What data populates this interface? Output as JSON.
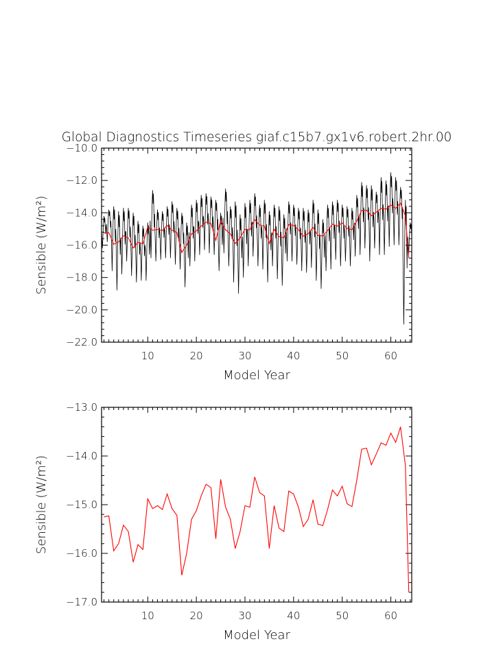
{
  "colors": {
    "background": "#ffffff",
    "axes": "#000000",
    "monthly_series": "#000000",
    "annual_series": "#ff0000"
  },
  "chart_data": [
    {
      "type": "line",
      "title": "Global Diagnostics Timeseries giaf.c15b7.gx1v6.robert.2hr.00",
      "xlabel": "Model Year",
      "ylabel": "Sensible (W/m²)",
      "xlim": [
        0.5,
        64.3
      ],
      "ylim": [
        -22.0,
        -10.0
      ],
      "xticks": [
        10,
        20,
        30,
        40,
        50,
        60
      ],
      "yticks": [
        -22.0,
        -20.0,
        -18.0,
        -16.0,
        -14.0,
        -12.0,
        -10.0
      ],
      "yticklabels": [
        "−22.0",
        "−20.0",
        "−18.0",
        "−16.0",
        "−14.0",
        "−12.0",
        "−10.0"
      ],
      "grid": false,
      "legend": "none",
      "series": [
        {
          "kind": "monthly",
          "monthly_min": [
            -16.2,
            -15.8,
            -17.6,
            -18.8,
            -17.8,
            -17.0,
            -17.9,
            -18.3,
            -18.2,
            -18.2,
            -16.8,
            -17.0,
            -16.9,
            -16.8,
            -16.8,
            -17.2,
            -17.5,
            -18.6,
            -17.3,
            -17.0,
            -16.6,
            -16.3,
            -16.5,
            -16.6,
            -17.6,
            -16.5,
            -17.3,
            -18.3,
            -19.0,
            -18.0,
            -17.3,
            -16.7,
            -17.3,
            -17.5,
            -18.3,
            -17.3,
            -18.1,
            -18.5,
            -17.0,
            -17.0,
            -17.2,
            -17.6,
            -17.7,
            -17.4,
            -18.2,
            -18.7,
            -17.6,
            -17.5,
            -16.9,
            -17.3,
            -17.0,
            -17.3,
            -16.7,
            -16.6,
            -16.2,
            -17.0,
            -16.2,
            -16.6,
            -16.6,
            -16.1,
            -16.0,
            -16.0,
            -20.9,
            -16.6
          ],
          "monthly_max": [
            -14.2,
            -13.8,
            -13.6,
            -13.9,
            -13.7,
            -13.7,
            -14.0,
            -14.5,
            -14.8,
            -14.6,
            -12.6,
            -13.8,
            -13.9,
            -13.6,
            -13.3,
            -13.7,
            -14.0,
            -14.6,
            -13.5,
            -13.2,
            -12.9,
            -12.8,
            -13.0,
            -13.2,
            -14.0,
            -12.5,
            -13.6,
            -13.3,
            -14.1,
            -13.4,
            -13.2,
            -12.8,
            -13.5,
            -13.2,
            -13.9,
            -13.5,
            -13.6,
            -14.1,
            -13.3,
            -13.5,
            -13.7,
            -13.7,
            -13.8,
            -13.2,
            -13.8,
            -14.4,
            -13.5,
            -13.3,
            -13.2,
            -13.5,
            -13.6,
            -13.7,
            -12.9,
            -12.1,
            -12.3,
            -12.3,
            -12.7,
            -11.8,
            -12.0,
            -11.5,
            -11.8,
            -12.4,
            -13.2,
            -14.6
          ]
        },
        {
          "kind": "annual",
          "x": [
            1,
            2,
            3,
            4,
            5,
            6,
            7,
            8,
            9,
            10,
            11,
            12,
            13,
            14,
            15,
            16,
            17,
            18,
            19,
            20,
            21,
            22,
            23,
            24,
            25,
            26,
            27,
            28,
            29,
            30,
            31,
            32,
            33,
            34,
            35,
            36,
            37,
            38,
            39,
            40,
            41,
            42,
            43,
            44,
            45,
            46,
            47,
            48,
            49,
            50,
            51,
            52,
            53,
            54,
            55,
            56,
            57,
            58,
            59,
            60,
            61,
            62,
            63,
            63.7
          ],
          "y": [
            -15.25,
            -15.23,
            -15.95,
            -15.8,
            -15.42,
            -15.55,
            -16.18,
            -15.82,
            -15.92,
            -14.88,
            -15.08,
            -15.02,
            -15.1,
            -14.78,
            -15.08,
            -15.22,
            -16.45,
            -16.0,
            -15.3,
            -15.12,
            -14.82,
            -14.58,
            -14.65,
            -15.7,
            -14.48,
            -15.05,
            -15.3,
            -15.9,
            -15.55,
            -15.02,
            -15.05,
            -14.43,
            -14.75,
            -14.82,
            -15.9,
            -15.02,
            -15.48,
            -15.55,
            -14.72,
            -14.78,
            -15.05,
            -15.45,
            -15.3,
            -14.9,
            -15.4,
            -15.43,
            -15.1,
            -14.7,
            -14.82,
            -14.62,
            -14.98,
            -15.04,
            -14.5,
            -13.86,
            -13.84,
            -14.18,
            -13.96,
            -13.73,
            -13.78,
            -13.53,
            -13.72,
            -13.4,
            -14.2,
            -16.8
          ]
        }
      ]
    },
    {
      "type": "line",
      "title": "",
      "xlabel": "Model Year",
      "ylabel": "Sensible (W/m²)",
      "xlim": [
        0.5,
        64.3
      ],
      "ylim": [
        -17.0,
        -13.0
      ],
      "xticks": [
        10,
        20,
        30,
        40,
        50,
        60
      ],
      "yticks": [
        -17.0,
        -16.0,
        -15.0,
        -14.0,
        -13.0
      ],
      "yticklabels": [
        "−17.0",
        "−16.0",
        "−15.0",
        "−14.0",
        "−13.0"
      ],
      "grid": false,
      "legend": "none",
      "series": [
        {
          "kind": "annual",
          "x": [
            1,
            2,
            3,
            4,
            5,
            6,
            7,
            8,
            9,
            10,
            11,
            12,
            13,
            14,
            15,
            16,
            17,
            18,
            19,
            20,
            21,
            22,
            23,
            24,
            25,
            26,
            27,
            28,
            29,
            30,
            31,
            32,
            33,
            34,
            35,
            36,
            37,
            38,
            39,
            40,
            41,
            42,
            43,
            44,
            45,
            46,
            47,
            48,
            49,
            50,
            51,
            52,
            53,
            54,
            55,
            56,
            57,
            58,
            59,
            60,
            61,
            62,
            63,
            63.7
          ],
          "y": [
            -15.25,
            -15.23,
            -15.95,
            -15.8,
            -15.42,
            -15.55,
            -16.18,
            -15.82,
            -15.92,
            -14.88,
            -15.08,
            -15.02,
            -15.1,
            -14.78,
            -15.08,
            -15.22,
            -16.45,
            -16.0,
            -15.3,
            -15.12,
            -14.82,
            -14.58,
            -14.65,
            -15.7,
            -14.48,
            -15.05,
            -15.3,
            -15.9,
            -15.55,
            -15.02,
            -15.05,
            -14.43,
            -14.75,
            -14.82,
            -15.9,
            -15.02,
            -15.48,
            -15.55,
            -14.72,
            -14.78,
            -15.05,
            -15.45,
            -15.3,
            -14.9,
            -15.4,
            -15.43,
            -15.1,
            -14.7,
            -14.82,
            -14.62,
            -14.98,
            -15.04,
            -14.5,
            -13.86,
            -13.84,
            -14.18,
            -13.96,
            -13.73,
            -13.78,
            -13.53,
            -13.72,
            -13.4,
            -14.2,
            -16.8
          ]
        }
      ]
    }
  ]
}
